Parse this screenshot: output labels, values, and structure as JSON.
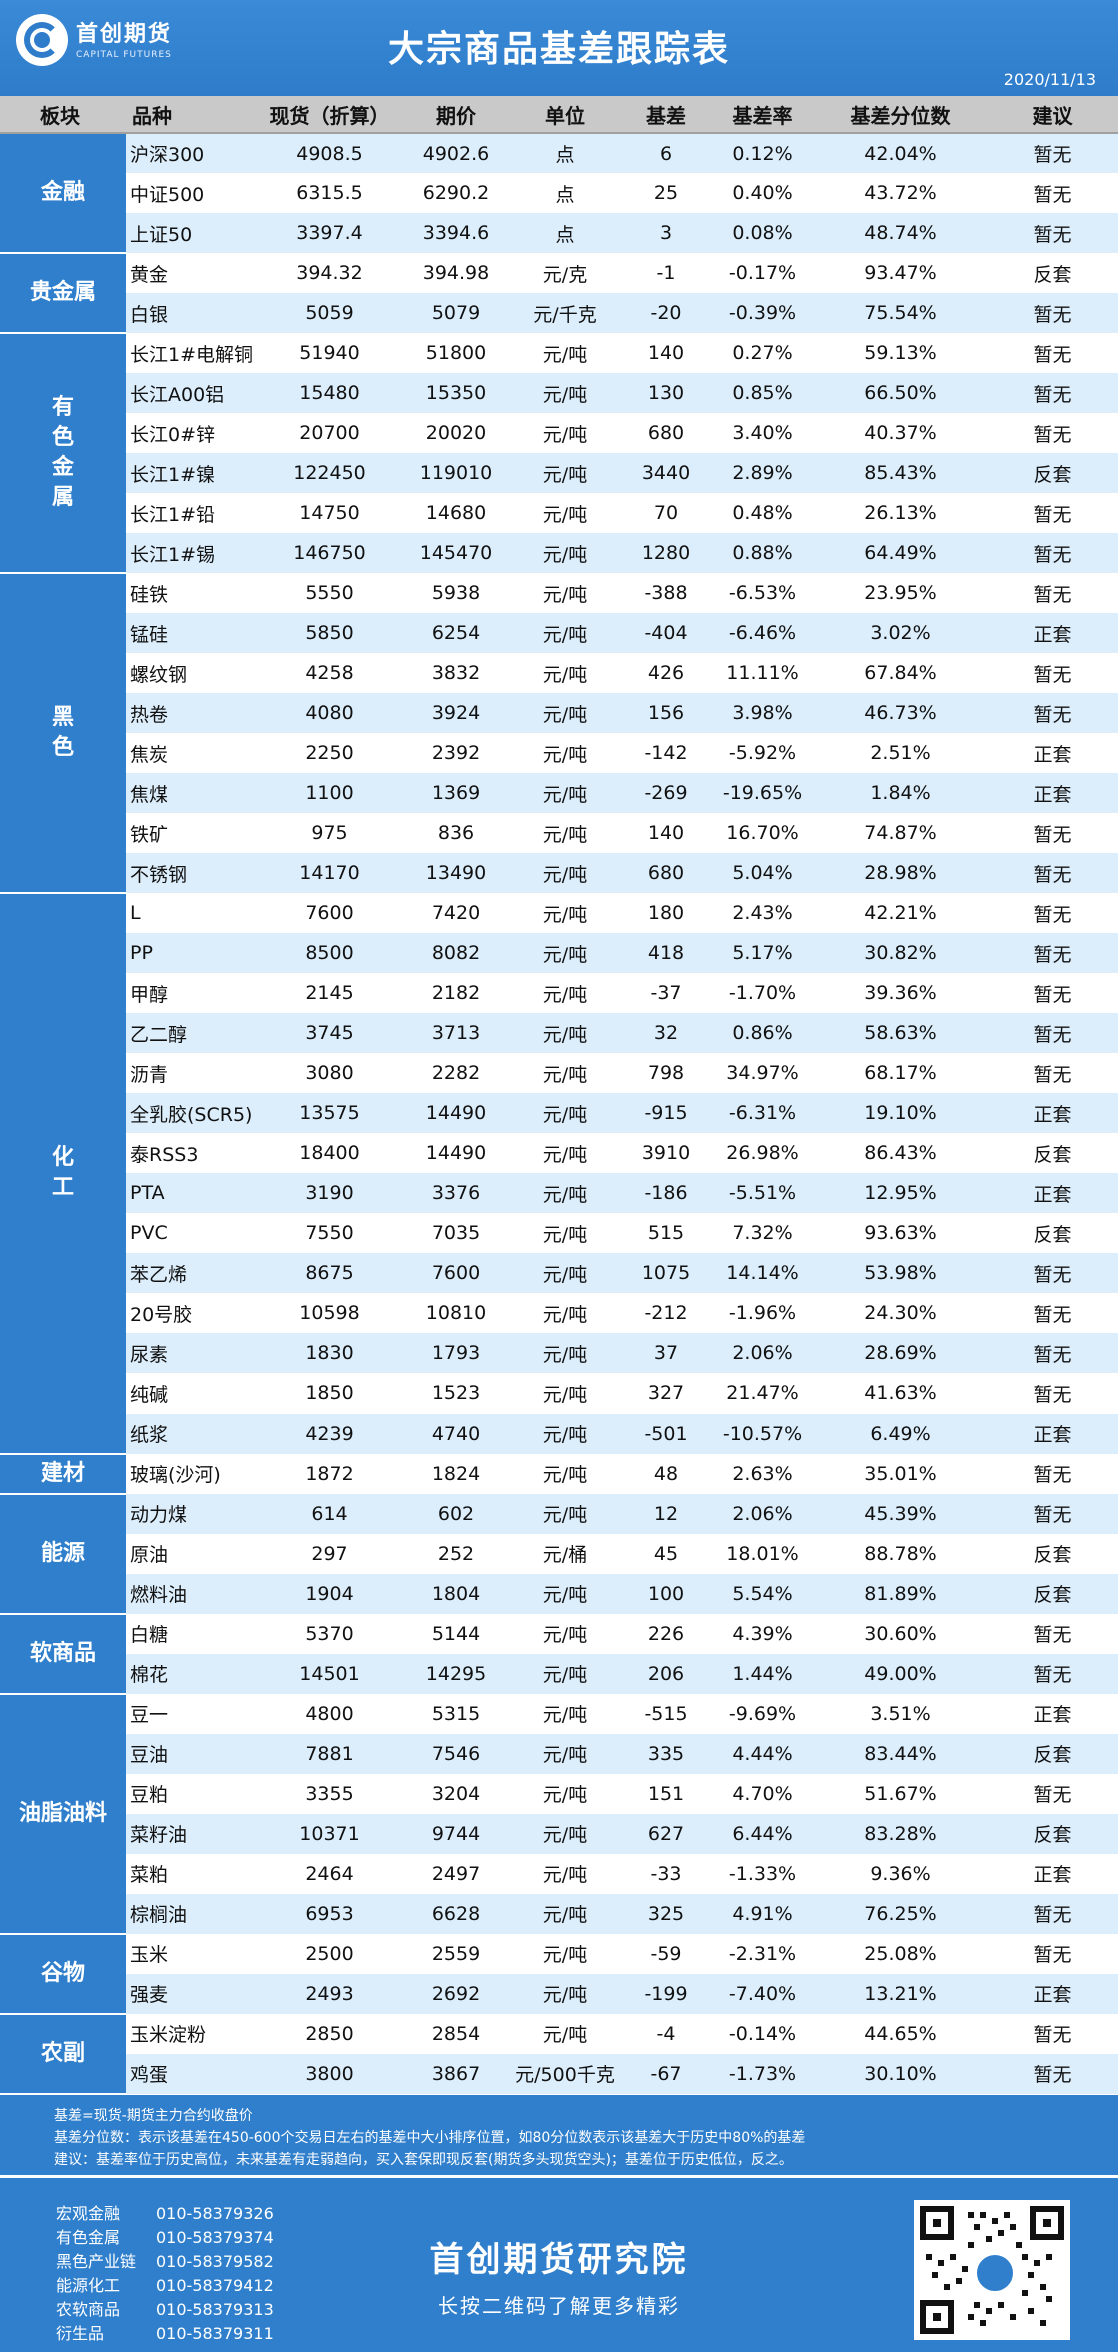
{
  "brand": {
    "name": "首创期货",
    "sub": "CAPITAL FUTURES"
  },
  "title": "大宗商品基差跟踪表",
  "date": "2020/11/13",
  "headers": [
    "板块",
    "品种",
    "现货（折算）",
    "期价",
    "单位",
    "基差",
    "基差率",
    "基差分位数",
    "建议"
  ],
  "sectors": [
    {
      "name": "金融",
      "rows": [
        [
          "沪深300",
          "4908.5",
          "4902.6",
          "点",
          "6",
          "0.12%",
          "42.04%",
          "暂无"
        ],
        [
          "中证500",
          "6315.5",
          "6290.2",
          "点",
          "25",
          "0.40%",
          "43.72%",
          "暂无"
        ],
        [
          "上证50",
          "3397.4",
          "3394.6",
          "点",
          "3",
          "0.08%",
          "48.74%",
          "暂无"
        ]
      ]
    },
    {
      "name": "贵金属",
      "rows": [
        [
          "黄金",
          "394.32",
          "394.98",
          "元/克",
          "-1",
          "-0.17%",
          "93.47%",
          "反套"
        ],
        [
          "白银",
          "5059",
          "5079",
          "元/千克",
          "-20",
          "-0.39%",
          "75.54%",
          "暂无"
        ]
      ]
    },
    {
      "name": "有色金属",
      "vertical": true,
      "rows": [
        [
          "长江1#电解铜",
          "51940",
          "51800",
          "元/吨",
          "140",
          "0.27%",
          "59.13%",
          "暂无"
        ],
        [
          "长江A00铝",
          "15480",
          "15350",
          "元/吨",
          "130",
          "0.85%",
          "66.50%",
          "暂无"
        ],
        [
          "长江0#锌",
          "20700",
          "20020",
          "元/吨",
          "680",
          "3.40%",
          "40.37%",
          "暂无"
        ],
        [
          "长江1#镍",
          "122450",
          "119010",
          "元/吨",
          "3440",
          "2.89%",
          "85.43%",
          "反套"
        ],
        [
          "长江1#铅",
          "14750",
          "14680",
          "元/吨",
          "70",
          "0.48%",
          "26.13%",
          "暂无"
        ],
        [
          "长江1#锡",
          "146750",
          "145470",
          "元/吨",
          "1280",
          "0.88%",
          "64.49%",
          "暂无"
        ]
      ]
    },
    {
      "name": "黑色",
      "vertical": true,
      "rows": [
        [
          "硅铁",
          "5550",
          "5938",
          "元/吨",
          "-388",
          "-6.53%",
          "23.95%",
          "暂无"
        ],
        [
          "锰硅",
          "5850",
          "6254",
          "元/吨",
          "-404",
          "-6.46%",
          "3.02%",
          "正套"
        ],
        [
          "螺纹钢",
          "4258",
          "3832",
          "元/吨",
          "426",
          "11.11%",
          "67.84%",
          "暂无"
        ],
        [
          "热卷",
          "4080",
          "3924",
          "元/吨",
          "156",
          "3.98%",
          "46.73%",
          "暂无"
        ],
        [
          "焦炭",
          "2250",
          "2392",
          "元/吨",
          "-142",
          "-5.92%",
          "2.51%",
          "正套"
        ],
        [
          "焦煤",
          "1100",
          "1369",
          "元/吨",
          "-269",
          "-19.65%",
          "1.84%",
          "正套"
        ],
        [
          "铁矿",
          "975",
          "836",
          "元/吨",
          "140",
          "16.70%",
          "74.87%",
          "暂无"
        ],
        [
          "不锈钢",
          "14170",
          "13490",
          "元/吨",
          "680",
          "5.04%",
          "28.98%",
          "暂无"
        ]
      ]
    },
    {
      "name": "化工",
      "vertical": true,
      "rows": [
        [
          "L",
          "7600",
          "7420",
          "元/吨",
          "180",
          "2.43%",
          "42.21%",
          "暂无"
        ],
        [
          "PP",
          "8500",
          "8082",
          "元/吨",
          "418",
          "5.17%",
          "30.82%",
          "暂无"
        ],
        [
          "甲醇",
          "2145",
          "2182",
          "元/吨",
          "-37",
          "-1.70%",
          "39.36%",
          "暂无"
        ],
        [
          "乙二醇",
          "3745",
          "3713",
          "元/吨",
          "32",
          "0.86%",
          "58.63%",
          "暂无"
        ],
        [
          "沥青",
          "3080",
          "2282",
          "元/吨",
          "798",
          "34.97%",
          "68.17%",
          "暂无"
        ],
        [
          "全乳胶(SCR5)",
          "13575",
          "14490",
          "元/吨",
          "-915",
          "-6.31%",
          "19.10%",
          "正套"
        ],
        [
          "泰RSS3",
          "18400",
          "14490",
          "元/吨",
          "3910",
          "26.98%",
          "86.43%",
          "反套"
        ],
        [
          "PTA",
          "3190",
          "3376",
          "元/吨",
          "-186",
          "-5.51%",
          "12.95%",
          "正套"
        ],
        [
          "PVC",
          "7550",
          "7035",
          "元/吨",
          "515",
          "7.32%",
          "93.63%",
          "反套"
        ],
        [
          "苯乙烯",
          "8675",
          "7600",
          "元/吨",
          "1075",
          "14.14%",
          "53.98%",
          "暂无"
        ],
        [
          "20号胶",
          "10598",
          "10810",
          "元/吨",
          "-212",
          "-1.96%",
          "24.30%",
          "暂无"
        ],
        [
          "尿素",
          "1830",
          "1793",
          "元/吨",
          "37",
          "2.06%",
          "28.69%",
          "暂无"
        ],
        [
          "纯碱",
          "1850",
          "1523",
          "元/吨",
          "327",
          "21.47%",
          "41.63%",
          "暂无"
        ],
        [
          "纸浆",
          "4239",
          "4740",
          "元/吨",
          "-501",
          "-10.57%",
          "6.49%",
          "正套"
        ]
      ]
    },
    {
      "name": "建材",
      "rows": [
        [
          "玻璃(沙河)",
          "1872",
          "1824",
          "元/吨",
          "48",
          "2.63%",
          "35.01%",
          "暂无"
        ]
      ]
    },
    {
      "name": "能源",
      "rows": [
        [
          "动力煤",
          "614",
          "602",
          "元/吨",
          "12",
          "2.06%",
          "45.39%",
          "暂无"
        ],
        [
          "原油",
          "297",
          "252",
          "元/桶",
          "45",
          "18.01%",
          "88.78%",
          "反套"
        ],
        [
          "燃料油",
          "1904",
          "1804",
          "元/吨",
          "100",
          "5.54%",
          "81.89%",
          "反套"
        ]
      ]
    },
    {
      "name": "软商品",
      "rows": [
        [
          "白糖",
          "5370",
          "5144",
          "元/吨",
          "226",
          "4.39%",
          "30.60%",
          "暂无"
        ],
        [
          "棉花",
          "14501",
          "14295",
          "元/吨",
          "206",
          "1.44%",
          "49.00%",
          "暂无"
        ]
      ]
    },
    {
      "name": "油脂油料",
      "rows": [
        [
          "豆一",
          "4800",
          "5315",
          "元/吨",
          "-515",
          "-9.69%",
          "3.51%",
          "正套"
        ],
        [
          "豆油",
          "7881",
          "7546",
          "元/吨",
          "335",
          "4.44%",
          "83.44%",
          "反套"
        ],
        [
          "豆粕",
          "3355",
          "3204",
          "元/吨",
          "151",
          "4.70%",
          "51.67%",
          "暂无"
        ],
        [
          "菜籽油",
          "10371",
          "9744",
          "元/吨",
          "627",
          "6.44%",
          "83.28%",
          "反套"
        ],
        [
          "菜粕",
          "2464",
          "2497",
          "元/吨",
          "-33",
          "-1.33%",
          "9.36%",
          "正套"
        ],
        [
          "棕榈油",
          "6953",
          "6628",
          "元/吨",
          "325",
          "4.91%",
          "76.25%",
          "暂无"
        ]
      ]
    },
    {
      "name": "谷物",
      "rows": [
        [
          "玉米",
          "2500",
          "2559",
          "元/吨",
          "-59",
          "-2.31%",
          "25.08%",
          "暂无"
        ],
        [
          "强麦",
          "2493",
          "2692",
          "元/吨",
          "-199",
          "-7.40%",
          "13.21%",
          "正套"
        ]
      ]
    },
    {
      "name": "农副",
      "rows": [
        [
          "玉米淀粉",
          "2850",
          "2854",
          "元/吨",
          "-4",
          "-0.14%",
          "44.65%",
          "暂无"
        ],
        [
          "鸡蛋",
          "3800",
          "3867",
          "元/500千克",
          "-67",
          "-1.73%",
          "30.10%",
          "暂无"
        ]
      ]
    }
  ],
  "notes": [
    "基差=现货-期货主力合约收盘价",
    "基差分位数：表示该基差在450-600个交易日左右的基差中大小排序位置，如80分位数表示该基差大于历史中80%的基差",
    "建议：基差率位于历史高位，未来基差有走弱趋向，买入套保即现反套(期货多头现货空头)；基差位于历史低位，反之。"
  ],
  "contacts": [
    {
      "label": "宏观金融",
      "phone": "010-58379326"
    },
    {
      "label": "有色金属",
      "phone": "010-58379374"
    },
    {
      "label": "黑色产业链",
      "phone": "010-58379582"
    },
    {
      "label": "能源化工",
      "phone": "010-58379412"
    },
    {
      "label": "农软商品",
      "phone": "010-58379313"
    },
    {
      "label": "衍生品",
      "phone": "010-58379311"
    }
  ],
  "institute": "首创期货研究院",
  "tagline": "长按二维码了解更多精彩",
  "colors": {
    "primary": "#2f7fcc",
    "row_highlight": "#dceefc",
    "header_gray": "#c9c9c9"
  }
}
